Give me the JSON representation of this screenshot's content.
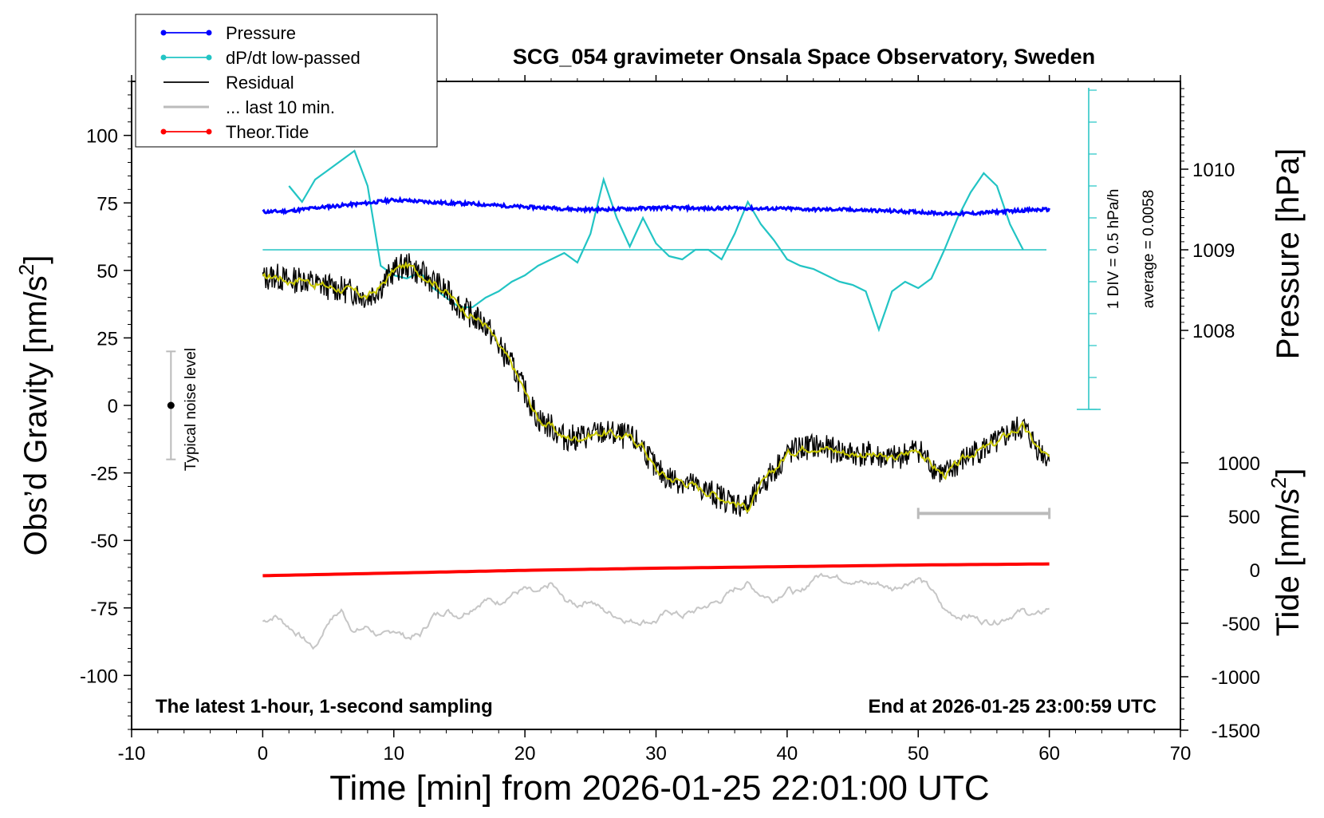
{
  "chart_data": {
    "type": "line",
    "title": "SCG_054 gravimeter Onsala Space Observatory, Sweden",
    "xlabel": "Time [min] from 2026-01-25 22:01:00 UTC",
    "ylabel": "Obs’d Gravity [nm/s²]",
    "ylabel_base": "Obs’d Gravity [nm/s",
    "ylabel_sup": "2",
    "ylabel_close": "]",
    "y2label": "Pressure [hPa]",
    "y3label_base": "Tide [nm/s",
    "y3label_sup": "2",
    "y3label_close": "]",
    "xlim": [
      -10,
      70
    ],
    "ylim": [
      -120,
      120
    ],
    "x_ticks": [
      "-10",
      "0",
      "10",
      "20",
      "30",
      "40",
      "50",
      "60",
      "70"
    ],
    "y_ticks": [
      "100",
      "75",
      "50",
      "25",
      "0",
      "-25",
      "-50",
      "-75",
      "-100"
    ],
    "pressure_ticks": [
      "1010",
      "1009",
      "1008"
    ],
    "tide_ticks": [
      "1000",
      "500",
      "0",
      "-500",
      "-1000",
      "-1500"
    ],
    "annotation_left": "The latest 1-hour, 1-second sampling",
    "annotation_right": "End at 2026-01-25 23:00:59 UTC",
    "noise_label": "Typical noise level",
    "noise_range": [
      -20,
      20
    ],
    "noise_x": -7,
    "dpdt_div_label": "1 DIV = 0.5 hPa/h",
    "dpdt_avg_label": "average = 0.0058",
    "last10_range": [
      50,
      60
    ],
    "last10_y": -40,
    "colors": {
      "pressure": "#0000ff",
      "dpdt": "#22c4c4",
      "residual": "#000000",
      "residual_smooth": "#c8c800",
      "last10": "#bbbbbb",
      "tide": "#ff0000",
      "grey_series": "#c6c6c6"
    },
    "legend": [
      {
        "name": "Pressure",
        "color": "#0000ff",
        "marker": true
      },
      {
        "name": "dP/dt low-passed",
        "color": "#22c4c4",
        "marker": true
      },
      {
        "name": "Residual",
        "color": "#000000",
        "marker": false
      },
      {
        "name": "... last 10 min.",
        "color": "#bbbbbb",
        "marker": false
      },
      {
        "name": "Theor.Tide",
        "color": "#ff0000",
        "marker": true
      }
    ],
    "series": [
      {
        "name": "Residual",
        "axis": "gravity",
        "x": [
          0,
          1,
          2,
          3,
          4,
          5,
          6,
          7,
          8,
          9,
          10,
          11,
          12,
          13,
          14,
          15,
          16,
          17,
          18,
          19,
          20,
          21,
          22,
          23,
          24,
          25,
          26,
          27,
          28,
          29,
          30,
          31,
          32,
          33,
          34,
          35,
          36,
          37,
          38,
          39,
          40,
          41,
          42,
          43,
          44,
          45,
          46,
          47,
          48,
          49,
          50,
          51,
          52,
          53,
          54,
          55,
          56,
          57,
          58,
          59,
          60
        ],
        "values": [
          47,
          48,
          46,
          47,
          45,
          44,
          43,
          42,
          40,
          44,
          50,
          52,
          49,
          46,
          42,
          37,
          33,
          30,
          22,
          15,
          5,
          -5,
          -8,
          -12,
          -12,
          -11,
          -10,
          -11,
          -12,
          -15,
          -24,
          -27,
          -28,
          -30,
          -32,
          -34,
          -36,
          -38,
          -30,
          -24,
          -18,
          -16,
          -15,
          -16,
          -17,
          -18,
          -18,
          -19,
          -20,
          -18,
          -16,
          -22,
          -26,
          -22,
          -18,
          -16,
          -14,
          -10,
          -8,
          -15,
          -20
        ]
      },
      {
        "name": "Pressure",
        "axis": "pressure",
        "x": [
          0,
          2,
          4,
          6,
          8,
          10,
          12,
          14,
          16,
          18,
          20,
          22,
          24,
          26,
          28,
          30,
          32,
          34,
          36,
          38,
          40,
          42,
          44,
          46,
          48,
          50,
          52,
          54,
          56,
          58,
          60
        ],
        "values": [
          1009.47,
          1009.48,
          1009.52,
          1009.55,
          1009.58,
          1009.62,
          1009.6,
          1009.58,
          1009.57,
          1009.55,
          1009.53,
          1009.52,
          1009.5,
          1009.5,
          1009.51,
          1009.52,
          1009.52,
          1009.51,
          1009.52,
          1009.51,
          1009.51,
          1009.5,
          1009.5,
          1009.49,
          1009.48,
          1009.47,
          1009.45,
          1009.45,
          1009.47,
          1009.49,
          1009.5
        ]
      },
      {
        "name": "dP/dt low-passed",
        "axis": "dpdt_div",
        "x": [
          2,
          3,
          4,
          5,
          6,
          7,
          8,
          9,
          10,
          11,
          12,
          13,
          14,
          15,
          16,
          17,
          18,
          19,
          20,
          21,
          22,
          23,
          24,
          25,
          26,
          27,
          28,
          29,
          30,
          31,
          32,
          33,
          34,
          35,
          36,
          37,
          38,
          39,
          40,
          41,
          42,
          43,
          44,
          45,
          46,
          47,
          48,
          49,
          50,
          51,
          52,
          53,
          54,
          55,
          56,
          57,
          58
        ],
        "values": [
          2.0,
          1.5,
          2.2,
          2.5,
          2.8,
          3.1,
          2.0,
          -0.5,
          -0.8,
          -0.9,
          -0.7,
          -1.2,
          -1.5,
          -1.8,
          -1.8,
          -1.5,
          -1.3,
          -1.0,
          -0.8,
          -0.5,
          -0.3,
          -0.1,
          -0.4,
          0.5,
          2.2,
          1.0,
          0.1,
          1.0,
          0.2,
          -0.2,
          -0.3,
          0.0,
          0.0,
          -0.3,
          0.5,
          1.5,
          0.8,
          0.3,
          -0.3,
          -0.5,
          -0.6,
          -0.8,
          -1.0,
          -1.1,
          -1.3,
          -2.5,
          -1.3,
          -1.0,
          -1.2,
          -0.9,
          0.0,
          1.0,
          1.8,
          2.4,
          2.0,
          0.8,
          0.0
        ]
      },
      {
        "name": "Theor.Tide",
        "axis": "tide",
        "x": [
          0,
          10,
          20,
          30,
          40,
          50,
          60
        ],
        "values": [
          -55,
          -30,
          -5,
          15,
          30,
          45,
          55
        ]
      },
      {
        "name": "Grey",
        "axis": "gravity",
        "x": [
          0,
          1,
          2,
          3,
          4,
          5,
          6,
          7,
          8,
          9,
          10,
          11,
          12,
          13,
          14,
          15,
          16,
          17,
          18,
          19,
          20,
          21,
          22,
          23,
          24,
          25,
          26,
          27,
          28,
          29,
          30,
          31,
          32,
          33,
          34,
          35,
          36,
          37,
          38,
          39,
          40,
          41,
          42,
          43,
          44,
          45,
          46,
          47,
          48,
          49,
          50,
          51,
          52,
          53,
          54,
          55,
          56,
          57,
          58,
          59,
          60
        ],
        "values": [
          -80,
          -78,
          -82,
          -86,
          -90,
          -80,
          -76,
          -84,
          -82,
          -86,
          -83,
          -86,
          -85,
          -78,
          -76,
          -78,
          -75,
          -72,
          -73,
          -70,
          -68,
          -70,
          -66,
          -72,
          -74,
          -72,
          -76,
          -78,
          -80,
          -80,
          -80,
          -76,
          -78,
          -76,
          -74,
          -72,
          -68,
          -66,
          -70,
          -72,
          -68,
          -70,
          -64,
          -62,
          -64,
          -65,
          -66,
          -66,
          -68,
          -66,
          -64,
          -68,
          -76,
          -78,
          -78,
          -80,
          -80,
          -78,
          -76,
          -78,
          -75
        ]
      }
    ]
  }
}
